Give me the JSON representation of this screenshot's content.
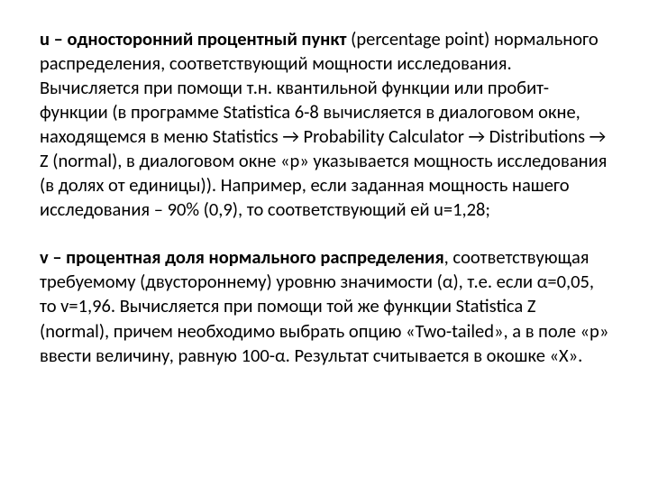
{
  "p1": {
    "lead_bold": "u – односторонний процентный пункт ",
    "tail": "(percentage point) нормального распределения, соответствующий мощности исследования. Вычисляется при помощи т.н. квантильной функции или пробит-функции (в программе Statistica 6-8 вычисляется в диалоговом окне, находящемся в меню Statistics → Probability Calculator → Distributions → Z (normal), в диалоговом окне «p» указывается мощность исследования (в долях от единицы)). Например, если заданная мощность нашего исследования – 90% (0,9), то соответствующий ей u=1,28;"
  },
  "p2": {
    "lead_bold": "v – процентная доля нормального распределения",
    "tail": ", соответствующая требуемому (двустороннему) уровню значимости (α), т.е. если α=0,05, то v=1,96. Вычисляется при помощи той же функции Statistica Z (normal), причем необходимо выбрать опцию «Two-tailed», а в поле «p» ввести величину, равную 100-α. Результат считывается в окошке «X»."
  }
}
